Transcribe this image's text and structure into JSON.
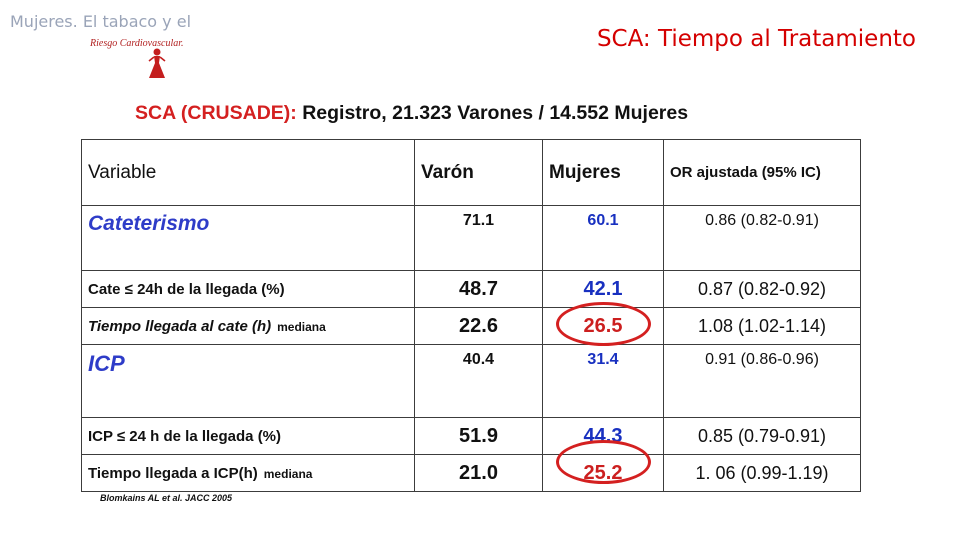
{
  "logo": {
    "title": "Mujeres. El tabaco y el",
    "subtitle": "Riesgo Cardiovascular."
  },
  "slide_title": "SCA: Tiempo al Tratamiento",
  "table_heading": {
    "prefix": "SCA (CRUSADE):",
    "rest": "Registro, 21.323 Varones / 14.552 Mujeres"
  },
  "table": {
    "headers": [
      "Variable",
      "Varón",
      "Mujeres",
      "OR ajustada (95% IC)"
    ],
    "rows": [
      {
        "variable": "Cateterismo",
        "varon": "71.1",
        "mujeres": "60.1",
        "or": "0.86 (0.82-0.91)"
      },
      {
        "variable": "Cate ≤ 24h de la llegada (%)",
        "varon": "48.7",
        "mujeres": "42.1",
        "or": "0.87 (0.82-0.92)"
      },
      {
        "variable": "Tiempo llegada al cate (h)",
        "note": "mediana",
        "varon": "22.6",
        "mujeres": "26.5",
        "or": "1.08 (1.02-1.14)"
      },
      {
        "variable": "ICP",
        "varon": "40.4",
        "mujeres": "31.4",
        "or": "0.91 (0.86-0.96)"
      },
      {
        "variable": "ICP ≤ 24 h de la llegada (%)",
        "varon": "51.9",
        "mujeres": "44.3",
        "or": "0.85 (0.79-0.91)"
      },
      {
        "variable": "Tiempo llegada a ICP(h)",
        "note": "mediana",
        "varon": "21.0",
        "mujeres": "25.2",
        "or": "1. 06 (0.99-1.19)"
      }
    ]
  },
  "footnote": "Blomkains AL et al. JACC 2005",
  "colors": {
    "title_red": "#d40000",
    "highlight_red": "#d42020",
    "value_blue": "#1830c0",
    "label_blue": "#2e3cc8",
    "logo_gray": "#9aa4b8"
  }
}
